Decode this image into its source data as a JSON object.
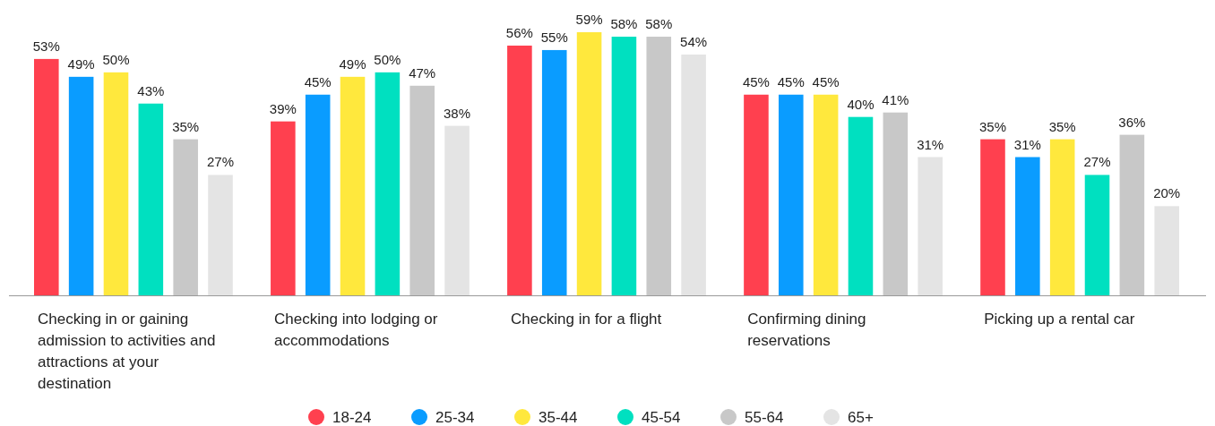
{
  "chart_data": {
    "type": "bar",
    "categories": [
      "Checking in or gaining admission to activities and attractions at your destination",
      "Checking into lodging or accommodations",
      "Checking in for a flight",
      "Confirming dining reservations",
      "Picking up a rental car"
    ],
    "series": [
      {
        "name": "18-24",
        "color": "#ff404f",
        "values": [
          53,
          39,
          56,
          45,
          35
        ],
        "value_labels": [
          "53%",
          "39%",
          "56%",
          "45%",
          "35%"
        ]
      },
      {
        "name": "25-34",
        "color": "#0a9cff",
        "values": [
          49,
          45,
          55,
          45,
          31
        ],
        "value_labels": [
          "49%",
          "45%",
          "55%",
          "45%",
          "31%"
        ]
      },
      {
        "name": "35-44",
        "color": "#ffe83d",
        "values": [
          50,
          49,
          59,
          45,
          35
        ],
        "value_labels": [
          "50%",
          "49%",
          "59%",
          "45%",
          "35%"
        ]
      },
      {
        "name": "45-54",
        "color": "#00e0c0",
        "values": [
          43,
          50,
          58,
          40,
          27
        ],
        "value_labels": [
          "43%",
          "50%",
          "58%",
          "40%",
          "27%"
        ]
      },
      {
        "name": "55-64",
        "color": "#c8c8c8",
        "values": [
          35,
          47,
          58,
          41,
          36
        ],
        "value_labels": [
          "35%",
          "47%",
          "58%",
          "41%",
          "36%"
        ]
      },
      {
        "name": "65+",
        "color": "#e4e4e4",
        "values": [
          27,
          38,
          54,
          31,
          20
        ],
        "value_labels": [
          "27%",
          "38%",
          "54%",
          "31%",
          "20%"
        ]
      }
    ],
    "legend": "bottom"
  }
}
